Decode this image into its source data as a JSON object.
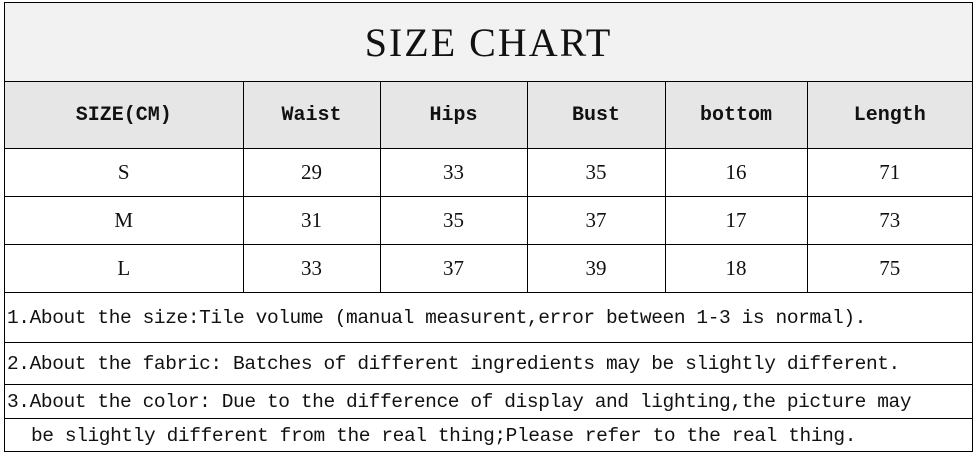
{
  "title": "SIZE CHART",
  "columns": [
    "SIZE(CM)",
    "Waist",
    "Hips",
    "Bust",
    "bottom",
    "Length"
  ],
  "rows": [
    [
      "S",
      "29",
      "33",
      "35",
      "16",
      "71"
    ],
    [
      "M",
      "31",
      "35",
      "37",
      "17",
      "73"
    ],
    [
      "L",
      "33",
      "37",
      "39",
      "18",
      "75"
    ]
  ],
  "notes": [
    "1.About the size:Tile volume (manual measurent,error between 1-3 is normal).",
    "2.About the fabric: Batches of different ingredients may be slightly different.",
    "3.About the color: Due to the difference of display and lighting,the picture may",
    "be slightly different from the real thing;Please refer to the real thing."
  ]
}
